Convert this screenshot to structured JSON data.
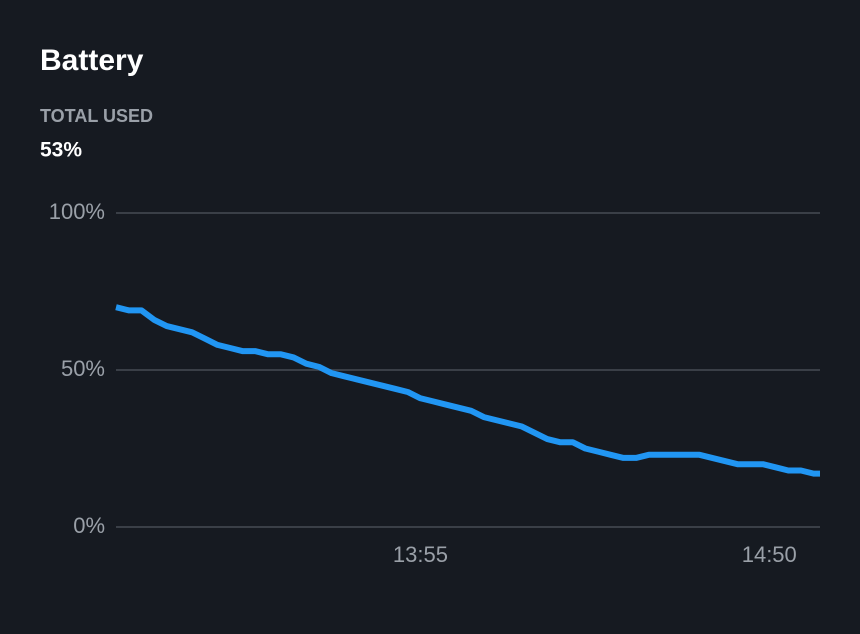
{
  "chart_data": {
    "type": "line",
    "title": "Battery",
    "summary_label": "TOTAL USED",
    "summary_value": "53%",
    "x": [
      787,
      789,
      791,
      793,
      795,
      797,
      799,
      801,
      803,
      805,
      807,
      809,
      811,
      813,
      815,
      817,
      819,
      821,
      823,
      825,
      827,
      829,
      831,
      833,
      835,
      837,
      839,
      841,
      843,
      845,
      847,
      849,
      851,
      853,
      855,
      857,
      859,
      861,
      863,
      865,
      867,
      869,
      871,
      873,
      875,
      877,
      879,
      881,
      883,
      885,
      887,
      889,
      891,
      893,
      895,
      897,
      898
    ],
    "series": [
      {
        "color": "#2196f3",
        "values": [
          70,
          69,
          69,
          66,
          64,
          63,
          62,
          60,
          58,
          57,
          56,
          56,
          55,
          55,
          54,
          52,
          51,
          49,
          48,
          47,
          46,
          45,
          44,
          43,
          41,
          40,
          39,
          38,
          37,
          35,
          34,
          33,
          32,
          30,
          28,
          27,
          27,
          25,
          24,
          23,
          22,
          22,
          23,
          23,
          23,
          23,
          23,
          22,
          21,
          20,
          20,
          20,
          19,
          18,
          18,
          17,
          17
        ]
      }
    ],
    "xlim": [
      787,
      898
    ],
    "xticks": [
      {
        "value": 835,
        "label": "13:55"
      },
      {
        "value": 890,
        "label": "14:50"
      }
    ],
    "ylim": [
      0,
      100
    ],
    "yticks": [
      {
        "value": 0,
        "label": "0%"
      },
      {
        "value": 50,
        "label": "50%"
      },
      {
        "value": 100,
        "label": "100%"
      }
    ],
    "grid": true
  }
}
